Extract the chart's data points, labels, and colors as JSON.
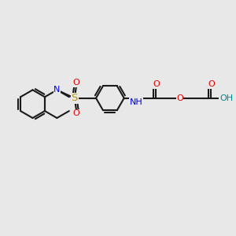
{
  "background_color": "#e8e8e8",
  "bond_color": "#1a1a1a",
  "bond_width": 1.5,
  "atom_colors": {
    "N": "#0000dd",
    "O": "#dd0000",
    "S": "#b8960c",
    "H": "#008888",
    "C": "#1a1a1a"
  },
  "font_size": 8.0,
  "fig_width": 3.0,
  "fig_height": 3.0,
  "dpi": 100
}
